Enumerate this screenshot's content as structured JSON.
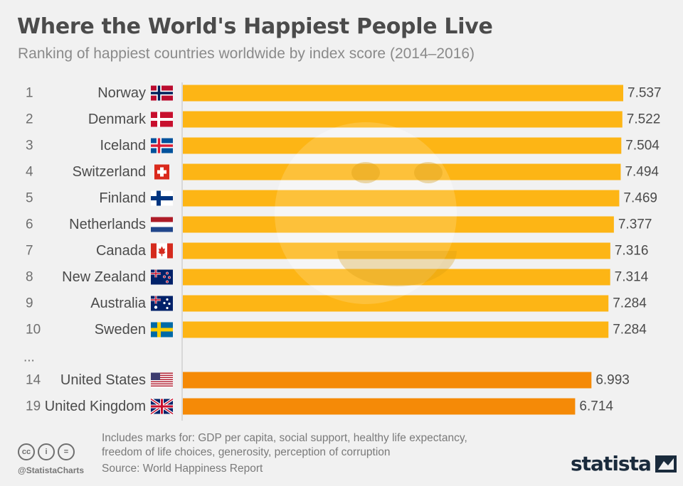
{
  "header": {
    "title": "Where the World's Happiest People Live",
    "subtitle": "Ranking of happiest countries worldwide by index score (2014–2016)"
  },
  "chart_data": {
    "type": "bar",
    "orientation": "horizontal",
    "title": "Where the World's Happiest People Live",
    "subtitle": "Ranking of happiest countries worldwide by index score (2014–2016)",
    "xlabel": "",
    "ylabel": "",
    "xlim": [
      0,
      7.537
    ],
    "grid": false,
    "legend": "none",
    "rows": [
      {
        "rank": "1",
        "country": "Norway",
        "flag": "norway-flag",
        "value": 7.537,
        "label": "7.537",
        "group": "top10"
      },
      {
        "rank": "2",
        "country": "Denmark",
        "flag": "denmark-flag",
        "value": 7.522,
        "label": "7.522",
        "group": "top10"
      },
      {
        "rank": "3",
        "country": "Iceland",
        "flag": "iceland-flag",
        "value": 7.504,
        "label": "7.504",
        "group": "top10"
      },
      {
        "rank": "4",
        "country": "Switzerland",
        "flag": "switzerland-flag",
        "value": 7.494,
        "label": "7.494",
        "group": "top10"
      },
      {
        "rank": "5",
        "country": "Finland",
        "flag": "finland-flag",
        "value": 7.469,
        "label": "7.469",
        "group": "top10"
      },
      {
        "rank": "6",
        "country": "Netherlands",
        "flag": "netherlands-flag",
        "value": 7.377,
        "label": "7.377",
        "group": "top10"
      },
      {
        "rank": "7",
        "country": "Canada",
        "flag": "canada-flag",
        "value": 7.316,
        "label": "7.316",
        "group": "top10"
      },
      {
        "rank": "8",
        "country": "New Zealand",
        "flag": "new-zealand-flag",
        "value": 7.314,
        "label": "7.314",
        "group": "top10"
      },
      {
        "rank": "9",
        "country": "Australia",
        "flag": "australia-flag",
        "value": 7.284,
        "label": "7.284",
        "group": "top10"
      },
      {
        "rank": "10",
        "country": "Sweden",
        "flag": "sweden-flag",
        "value": 7.284,
        "label": "7.284",
        "group": "top10"
      },
      {
        "rank": "14",
        "country": "United States",
        "flag": "usa-flag",
        "value": 6.993,
        "label": "6.993",
        "group": "highlight"
      },
      {
        "rank": "19",
        "country": "United Kingdom",
        "flag": "uk-flag",
        "value": 6.714,
        "label": "6.714",
        "group": "highlight"
      }
    ],
    "ellipsis": "...",
    "colors": {
      "top10": "#fdb515",
      "highlight": "#f58a07",
      "axis": "#cfcfcf"
    }
  },
  "footer": {
    "note_line1": "Includes marks for: GDP per capita, social support, healthy life expectancy,",
    "note_line2": "freedom of life choices, generosity, perception of corruption",
    "source": "Source: World Happiness Report",
    "handle": "@StatistaCharts",
    "cc_icons": [
      "cc",
      "by",
      "nd"
    ],
    "cc_labels": [
      "cc",
      "i",
      "="
    ],
    "brand": "statista"
  }
}
